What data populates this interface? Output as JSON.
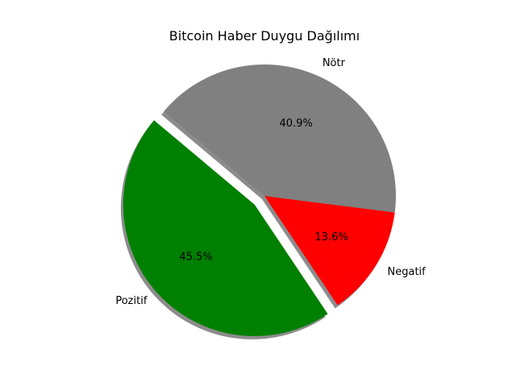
{
  "chart_data": {
    "type": "pie",
    "title": "Bitcoin Haber Duygu Dağılımı",
    "slices": [
      {
        "label": "Pozitif",
        "value": 45.5,
        "pct_label": "45.5%",
        "color": "#008000",
        "exploded": true
      },
      {
        "label": "Negatif",
        "value": 13.6,
        "pct_label": "13.6%",
        "color": "#ff0000",
        "exploded": false
      },
      {
        "label": "Nötr",
        "value": 40.9,
        "pct_label": "40.9%",
        "color": "#808080",
        "exploded": false
      }
    ],
    "start_angle_deg": 140,
    "shadow": true,
    "legend": "none"
  }
}
